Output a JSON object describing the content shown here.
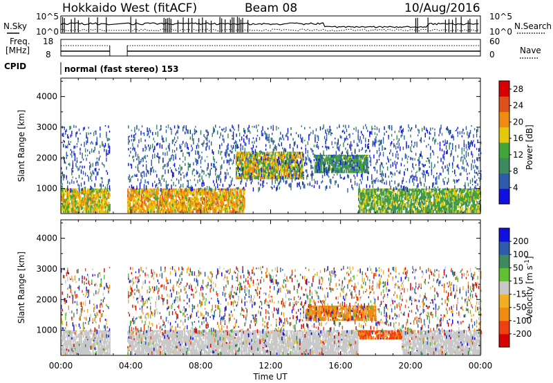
{
  "header": {
    "radar": "Hokkaido West (fitACF)",
    "beam": "Beam 08",
    "date": "10/Aug/2016"
  },
  "noise_panel": {
    "left_label": "N.Sky",
    "right_label": "N.Search",
    "y_top": "10^5",
    "y_bottom": "10^0"
  },
  "freq_panel": {
    "left_label_line1": "Freq.",
    "left_label_line2": "[MHz]",
    "left_top": "18",
    "left_bottom": "8",
    "right_label": "Nave",
    "right_top": "60",
    "right_bottom": "0"
  },
  "cpid": {
    "label": "CPID",
    "text": "normal (fast stereo) 153"
  },
  "x_axis": {
    "label": "Time UT",
    "ticks": [
      "00:00",
      "04:00",
      "08:00",
      "12:00",
      "16:00",
      "20:00",
      "00:00"
    ]
  },
  "colors": {
    "power": [
      "#1010e0",
      "#2f5ab0",
      "#3d8a5e",
      "#41a53a",
      "#e6c80a",
      "#f08a10",
      "#e0501a",
      "#d80000"
    ],
    "velocity": [
      "#d80000",
      "#f04010",
      "#f08a10",
      "#f0b020",
      "#c8c8c8",
      "#60c030",
      "#3d8a5e",
      "#2f5ab0",
      "#1010e0"
    ]
  },
  "chart_data": [
    {
      "type": "heatmap",
      "title": "",
      "xlabel": "Time UT",
      "ylabel": "Slant Range [km]",
      "x_range": [
        "00:00",
        "24:00"
      ],
      "ylim": [
        180,
        4600
      ],
      "y_ticks": [
        1000,
        2000,
        3000,
        4000
      ],
      "colorbar": {
        "label": "Power [dB]",
        "range": [
          0,
          30
        ],
        "ticks": [
          4,
          8,
          12,
          16,
          20,
          24,
          28
        ]
      },
      "data_gap_ut_hours": [
        2.8,
        3.8
      ],
      "regions": [
        {
          "t_start": 0.0,
          "t_end": 2.8,
          "range_start": 200,
          "range_end": 1000,
          "level_db": 18
        },
        {
          "t_start": 3.8,
          "t_end": 10.5,
          "range_start": 200,
          "range_end": 1000,
          "level_db": 20
        },
        {
          "t_start": 10.0,
          "t_end": 13.8,
          "range_start": 1300,
          "range_end": 2200,
          "level_db": 18
        },
        {
          "t_start": 14.5,
          "t_end": 17.5,
          "range_start": 1500,
          "range_end": 2100,
          "level_db": 12
        },
        {
          "t_start": 17.0,
          "t_end": 24.0,
          "range_start": 200,
          "range_end": 1000,
          "level_db": 14
        }
      ]
    },
    {
      "type": "heatmap",
      "title": "",
      "xlabel": "Time UT",
      "ylabel": "Slant Range [km]",
      "x_range": [
        "00:00",
        "24:00"
      ],
      "ylim": [
        180,
        4600
      ],
      "y_ticks": [
        1000,
        2000,
        3000,
        4000
      ],
      "colorbar": {
        "label": "Velocity [m s^-1]",
        "tick_labels": [
          "200",
          "100",
          "50",
          "15",
          "-15",
          "-50",
          "-100",
          "-200"
        ]
      },
      "data_gap_ut_hours": [
        2.8,
        3.8
      ],
      "regions": [
        {
          "t_start": 0.0,
          "t_end": 2.8,
          "range_start": 200,
          "range_end": 1000,
          "velocity": 0
        },
        {
          "t_start": 3.8,
          "t_end": 17.0,
          "range_start": 200,
          "range_end": 1000,
          "velocity": 0
        },
        {
          "t_start": 14.0,
          "t_end": 18.0,
          "range_start": 1300,
          "range_end": 1800,
          "velocity": -50
        },
        {
          "t_start": 17.0,
          "t_end": 19.5,
          "range_start": 700,
          "range_end": 1000,
          "velocity": -80
        },
        {
          "t_start": 19.5,
          "t_end": 24.0,
          "range_start": 200,
          "range_end": 1000,
          "velocity": 0
        }
      ]
    }
  ]
}
